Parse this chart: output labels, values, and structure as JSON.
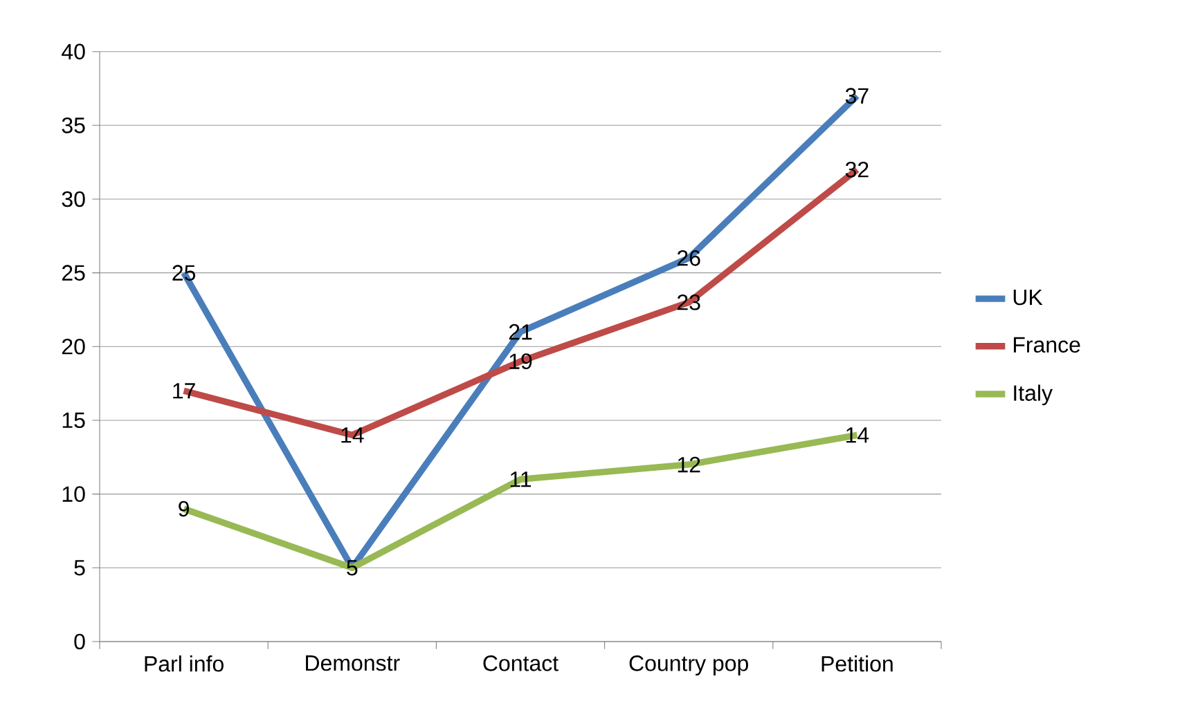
{
  "chart_data": {
    "type": "line",
    "categories": [
      "Parl info",
      "Demonstr",
      "Contact",
      "Country pop",
      "Petition"
    ],
    "series": [
      {
        "name": "UK",
        "color": "#4a7ebb",
        "values": [
          25,
          5,
          21,
          26,
          37
        ],
        "value_labels": [
          "25",
          "5",
          "21",
          "26",
          "37"
        ]
      },
      {
        "name": "France",
        "color": "#be4b48",
        "values": [
          17,
          14,
          19,
          23,
          32
        ],
        "value_labels": [
          "17",
          "14",
          "19",
          "23",
          "32"
        ]
      },
      {
        "name": "Italy",
        "color": "#98b954",
        "values": [
          9,
          5,
          11,
          12,
          14
        ],
        "value_labels": [
          "9",
          null,
          "11",
          "12",
          "14"
        ]
      }
    ],
    "ylim": [
      0,
      40
    ],
    "yticks": [
      0,
      5,
      10,
      15,
      20,
      25,
      30,
      35,
      40
    ],
    "grid": "y",
    "legend": "right",
    "marker": "none",
    "line_style": "solid"
  }
}
